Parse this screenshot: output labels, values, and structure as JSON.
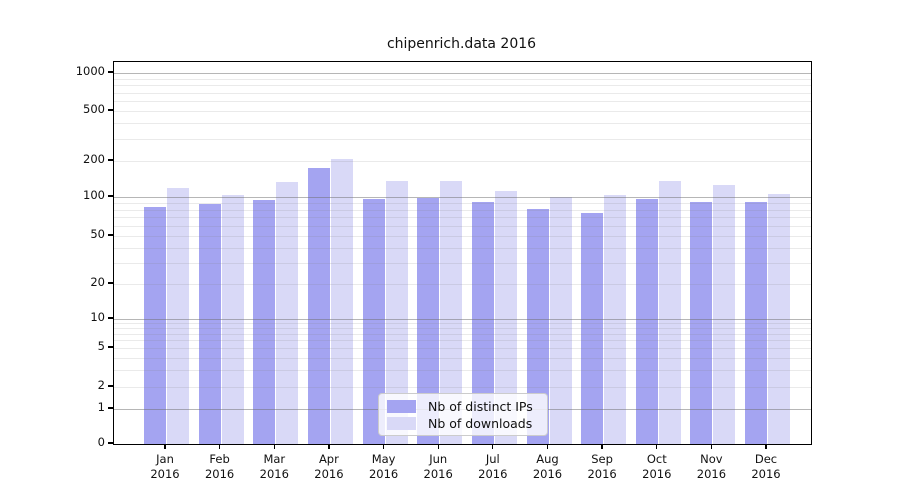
{
  "chart_data": {
    "type": "bar",
    "title": "chipenrich.data 2016",
    "categories": [
      "Jan",
      "Feb",
      "Mar",
      "Apr",
      "May",
      "Jun",
      "Jul",
      "Aug",
      "Sep",
      "Oct",
      "Nov",
      "Dec"
    ],
    "year": "2016",
    "series": [
      {
        "name": "Nb of distinct IPs",
        "color": "#a4a4f1",
        "values": [
          84,
          89,
          95,
          175,
          96,
          98,
          92,
          81,
          75,
          97,
          92,
          92
        ]
      },
      {
        "name": "Nb of downloads",
        "color": "#d9d9f7",
        "values": [
          120,
          104,
          133,
          207,
          135,
          136,
          113,
          101,
          105,
          136,
          127,
          106
        ]
      }
    ],
    "xlabel": "",
    "ylabel": "",
    "y_axis": {
      "scale": "symlog",
      "tick_values": [
        0,
        1,
        2,
        5,
        10,
        20,
        50,
        100,
        200,
        500,
        1000
      ],
      "tick_labels": [
        "0",
        "1",
        "2",
        "5",
        "10",
        "20",
        "50",
        "100",
        "200",
        "500",
        "1000"
      ],
      "ylim": [
        0,
        1150
      ]
    },
    "grid": true,
    "legend_position": "lower center"
  }
}
